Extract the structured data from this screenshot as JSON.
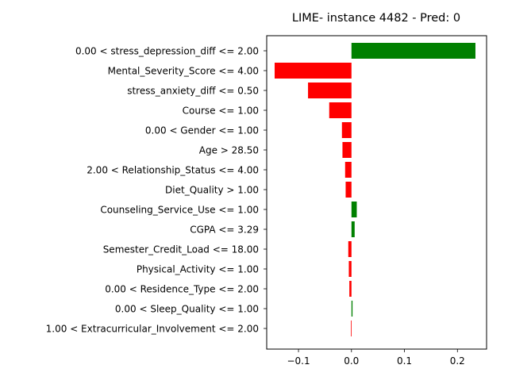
{
  "chart_data": {
    "type": "bar",
    "orientation": "horizontal",
    "title": "LIME- instance 4482 - Pred: 0",
    "xlabel": "",
    "ylabel": "",
    "xlim": [
      -0.16,
      0.255
    ],
    "xticks": [
      -0.1,
      0.0,
      0.1,
      0.2
    ],
    "xtick_labels": [
      "−0.1",
      "0.0",
      "0.1",
      "0.2"
    ],
    "grid": false,
    "colors": {
      "positive": "#008000",
      "negative": "#ff0000"
    },
    "categories": [
      "0.00 < stress_depression_diff <= 2.00",
      "Mental_Severity_Score <= 4.00",
      "stress_anxiety_diff <= 0.50",
      "Course <= 1.00",
      "0.00 < Gender <= 1.00",
      "Age > 28.50",
      "2.00 < Relationship_Status <= 4.00",
      "Diet_Quality > 1.00",
      "Counseling_Service_Use <= 1.00",
      "CGPA <= 3.29",
      "Semester_Credit_Load <= 18.00",
      "Physical_Activity <= 1.00",
      "0.00 < Residence_Type <= 2.00",
      "0.00 < Sleep_Quality <= 1.00",
      "1.00 < Extracurricular_Involvement <= 2.00"
    ],
    "values": [
      0.234,
      -0.145,
      -0.082,
      -0.042,
      -0.018,
      -0.017,
      -0.012,
      -0.011,
      0.01,
      0.006,
      -0.006,
      -0.005,
      -0.004,
      0.002,
      -0.001
    ]
  }
}
